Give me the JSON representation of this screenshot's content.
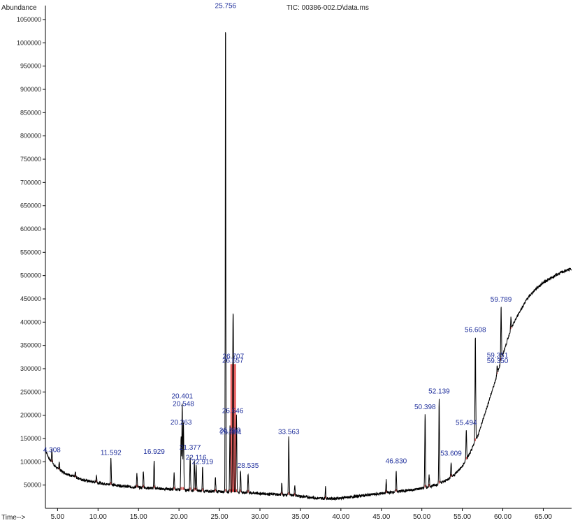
{
  "chart_data": {
    "type": "line",
    "title": "TIC: 00386-002.D\\data.ms",
    "ylabel": "Abundance",
    "xlabel": "Time-->",
    "xlim": [
      3.5,
      68.5
    ],
    "ylim": [
      0,
      1080000
    ],
    "x_ticks": [
      "5.00",
      "10.00",
      "15.00",
      "20.00",
      "25.00",
      "30.00",
      "35.00",
      "40.00",
      "45.00",
      "50.00",
      "55.00",
      "60.00",
      "65.00"
    ],
    "y_ticks": [
      "50000",
      "100000",
      "150000",
      "200000",
      "250000",
      "300000",
      "350000",
      "400000",
      "450000",
      "500000",
      "550000",
      "600000",
      "650000",
      "700000",
      "750000",
      "800000",
      "850000",
      "900000",
      "950000",
      "1000000",
      "1050000"
    ],
    "series": [
      {
        "color": "#000000",
        "baseline": [
          [
            3.5,
            125000
          ],
          [
            4.0,
            105000
          ],
          [
            5.0,
            85000
          ],
          [
            6.0,
            75000
          ],
          [
            7.0,
            68000
          ],
          [
            8.0,
            62000
          ],
          [
            9.0,
            58000
          ],
          [
            10.0,
            55000
          ],
          [
            11.0,
            52000
          ],
          [
            12.0,
            50000
          ],
          [
            13.0,
            48000
          ],
          [
            14.0,
            46000
          ],
          [
            15.0,
            45000
          ],
          [
            16.0,
            44000
          ],
          [
            17.0,
            43000
          ],
          [
            18.0,
            42000
          ],
          [
            19.0,
            41000
          ],
          [
            20.0,
            40000
          ],
          [
            21.0,
            39000
          ],
          [
            22.0,
            38000
          ],
          [
            23.0,
            37000
          ],
          [
            24.0,
            36500
          ],
          [
            25.0,
            36000
          ],
          [
            26.0,
            35500
          ],
          [
            27.0,
            35000
          ],
          [
            28.0,
            34000
          ],
          [
            29.0,
            33000
          ],
          [
            30.0,
            32000
          ],
          [
            31.0,
            31000
          ],
          [
            32.0,
            30000
          ],
          [
            33.0,
            29000
          ],
          [
            34.0,
            28000
          ],
          [
            35.0,
            26000
          ],
          [
            36.0,
            24000
          ],
          [
            37.0,
            22000
          ],
          [
            38.0,
            21000
          ],
          [
            39.0,
            21000
          ],
          [
            40.0,
            22000
          ],
          [
            41.0,
            24000
          ],
          [
            42.0,
            26000
          ],
          [
            43.0,
            28000
          ],
          [
            44.0,
            30000
          ],
          [
            45.0,
            32000
          ],
          [
            46.0,
            34000
          ],
          [
            47.0,
            36000
          ],
          [
            48.0,
            38000
          ],
          [
            49.0,
            40000
          ],
          [
            50.0,
            43000
          ],
          [
            51.0,
            47000
          ],
          [
            52.0,
            52000
          ],
          [
            53.0,
            60000
          ],
          [
            54.0,
            72000
          ],
          [
            55.0,
            90000
          ],
          [
            56.0,
            120000
          ],
          [
            57.0,
            160000
          ],
          [
            58.0,
            215000
          ],
          [
            59.0,
            270000
          ],
          [
            60.0,
            330000
          ],
          [
            61.0,
            385000
          ],
          [
            62.0,
            420000
          ],
          [
            63.0,
            450000
          ],
          [
            64.0,
            470000
          ],
          [
            65.0,
            485000
          ],
          [
            66.0,
            495000
          ],
          [
            67.0,
            505000
          ],
          [
            68.0,
            512000
          ],
          [
            68.5,
            515000
          ]
        ],
        "peaks": [
          [
            4.3,
            128000
          ],
          [
            5.2,
            100000
          ],
          [
            7.2,
            78000
          ],
          [
            9.8,
            72000
          ],
          [
            11.59,
            110000
          ],
          [
            14.8,
            75000
          ],
          [
            15.6,
            80000
          ],
          [
            16.93,
            105000
          ],
          [
            19.4,
            75000
          ],
          [
            20.26,
            155000
          ],
          [
            20.4,
            225000
          ],
          [
            20.55,
            185000
          ],
          [
            21.38,
            110000
          ],
          [
            21.9,
            100000
          ],
          [
            22.12,
            95000
          ],
          [
            22.92,
            90000
          ],
          [
            24.5,
            65000
          ],
          [
            25.75,
            1060000
          ],
          [
            26.3,
            175000
          ],
          [
            26.65,
            300000
          ],
          [
            26.72,
            315000
          ],
          [
            27.1,
            200000
          ],
          [
            27.6,
            80000
          ],
          [
            28.54,
            75000
          ],
          [
            32.7,
            55000
          ],
          [
            33.56,
            155000
          ],
          [
            34.3,
            50000
          ],
          [
            38.1,
            45000
          ],
          [
            45.6,
            60000
          ],
          [
            46.83,
            80000
          ],
          [
            50.4,
            205000
          ],
          [
            50.9,
            70000
          ],
          [
            52.14,
            235000
          ],
          [
            53.61,
            100000
          ],
          [
            55.49,
            170000
          ],
          [
            56.61,
            370000
          ],
          [
            59.3,
            305000
          ],
          [
            59.79,
            435000
          ],
          [
            61.0,
            410000
          ]
        ]
      }
    ],
    "peak_labels": [
      {
        "x": 4.308,
        "y": 118000,
        "text": "4.308"
      },
      {
        "x": 11.592,
        "y": 112000,
        "text": "11.592"
      },
      {
        "x": 16.929,
        "y": 114000,
        "text": "16.929"
      },
      {
        "x": 20.401,
        "y": 233000,
        "text": "20.401"
      },
      {
        "x": 20.546,
        "y": 217000,
        "text": "20.548"
      },
      {
        "x": 20.263,
        "y": 177000,
        "text": "20.263"
      },
      {
        "x": 21.377,
        "y": 123000,
        "text": "21.377"
      },
      {
        "x": 22.116,
        "y": 101000,
        "text": "22.116"
      },
      {
        "x": 22.919,
        "y": 92000,
        "text": "22.919"
      },
      {
        "x": 25.756,
        "y": 1072000,
        "text": "25.756"
      },
      {
        "x": 26.707,
        "y": 319000,
        "text": "26.707"
      },
      {
        "x": 26.657,
        "y": 310000,
        "text": "26.657"
      },
      {
        "x": 26.646,
        "y": 202000,
        "text": "26.646"
      },
      {
        "x": 26.288,
        "y": 160000,
        "text": "26.288"
      },
      {
        "x": 26.384,
        "y": 156000,
        "text": "26.384"
      },
      {
        "x": 28.535,
        "y": 84000,
        "text": "28.535"
      },
      {
        "x": 33.563,
        "y": 157000,
        "text": "33.563"
      },
      {
        "x": 46.83,
        "y": 94000,
        "text": "46.830"
      },
      {
        "x": 50.398,
        "y": 210000,
        "text": "50.398"
      },
      {
        "x": 52.139,
        "y": 244000,
        "text": "52.139"
      },
      {
        "x": 53.609,
        "y": 110000,
        "text": "53.609"
      },
      {
        "x": 55.494,
        "y": 176000,
        "text": "55.494"
      },
      {
        "x": 56.608,
        "y": 376000,
        "text": "56.608"
      },
      {
        "x": 59.351,
        "y": 321000,
        "text": "59.351"
      },
      {
        "x": 59.35,
        "y": 309000,
        "text": "59.350"
      },
      {
        "x": 59.789,
        "y": 441000,
        "text": "59.789"
      }
    ]
  }
}
